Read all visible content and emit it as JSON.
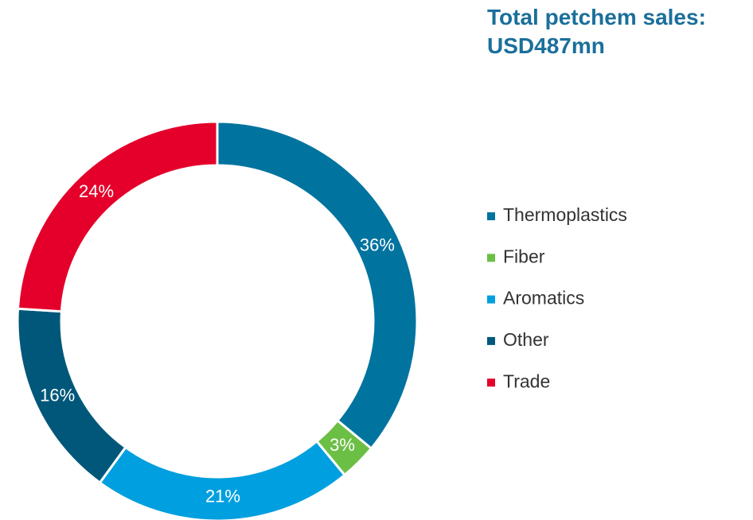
{
  "chart_data": {
    "type": "donut",
    "title": "Total petchem sales: USD487mn",
    "categories": [
      "Thermoplastics",
      "Fiber",
      "Aromatics",
      "Other",
      "Trade"
    ],
    "values": [
      36,
      3,
      21,
      16,
      24
    ],
    "value_labels": [
      "36%",
      "3%",
      "21%",
      "16%",
      "24%"
    ],
    "colors": [
      "#00739f",
      "#6cbf45",
      "#009fdf",
      "#00577a",
      "#e4002b"
    ],
    "legend": "right"
  }
}
